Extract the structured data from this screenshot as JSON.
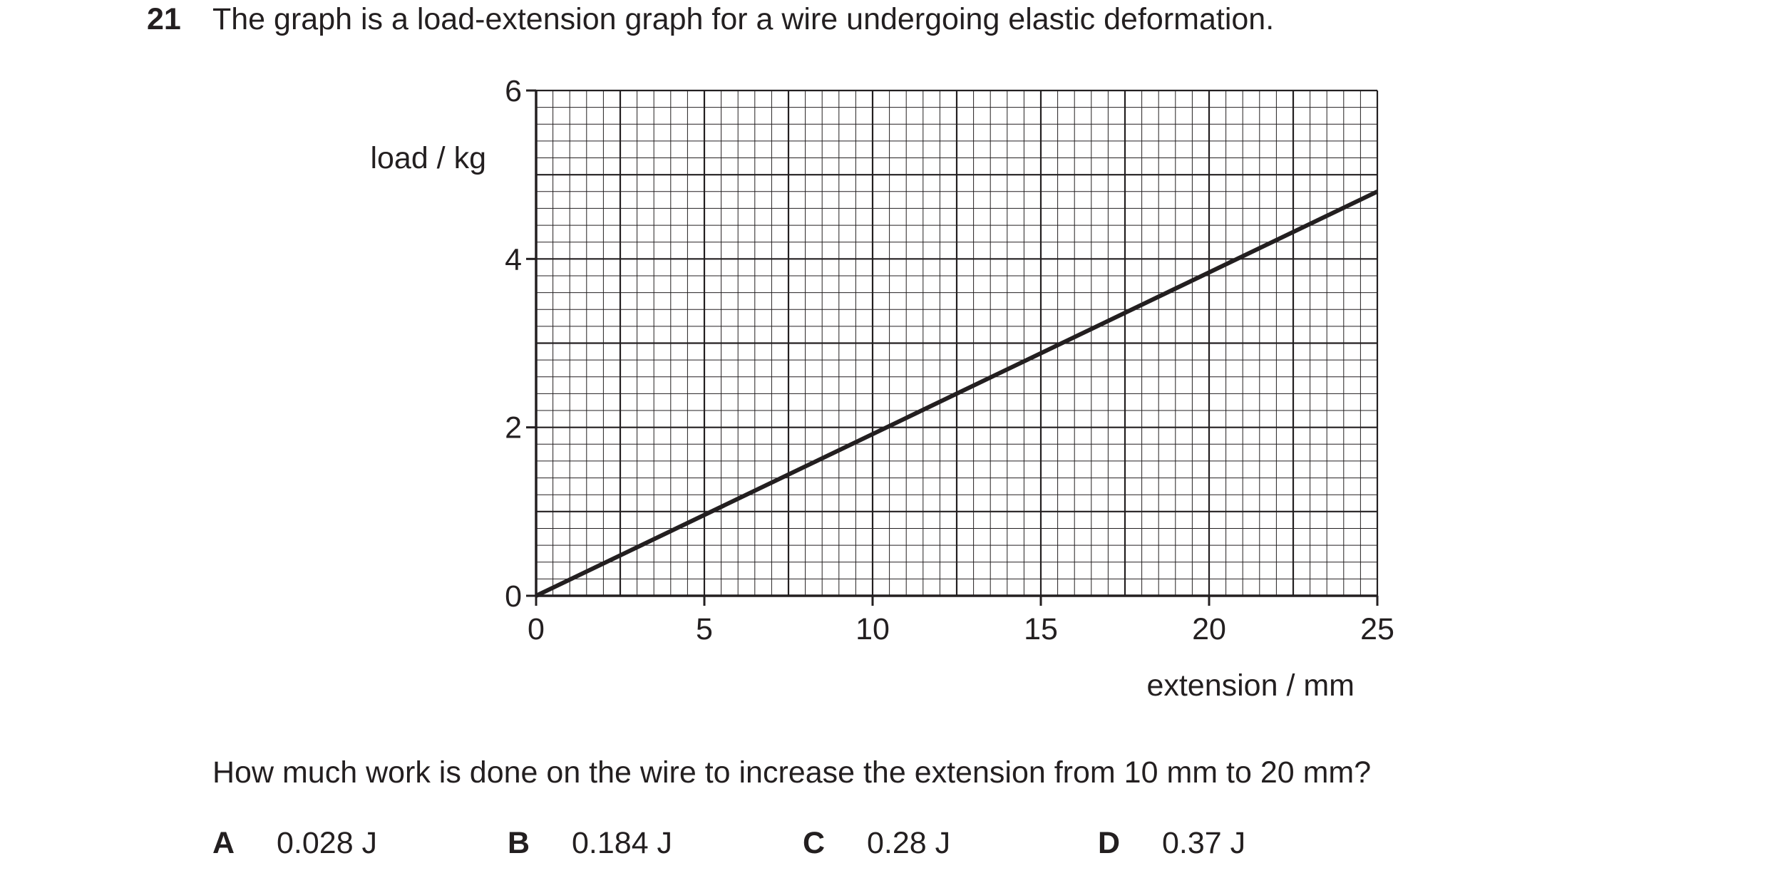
{
  "question": {
    "number": "21",
    "stem": "The graph is a load-extension graph for a wire undergoing elastic deformation.",
    "prompt": "How much work is done on the wire to increase the extension from 10 mm to 20 mm?"
  },
  "options": [
    {
      "letter": "A",
      "text": "0.028 J"
    },
    {
      "letter": "B",
      "text": "0.184 J"
    },
    {
      "letter": "C",
      "text": "0.28 J"
    },
    {
      "letter": "D",
      "text": "0.37 J"
    }
  ],
  "chart_data": {
    "type": "line",
    "title": "",
    "xlabel": "extension / mm",
    "ylabel": "load / kg",
    "xlim": [
      0,
      25
    ],
    "ylim": [
      0,
      6
    ],
    "x_ticks": [
      "0",
      "5",
      "10",
      "15",
      "20",
      "25"
    ],
    "y_ticks": [
      "0",
      "2",
      "4",
      "6"
    ],
    "grid": true,
    "series": [
      {
        "x": [
          0,
          25
        ],
        "y": [
          0,
          4.8
        ]
      }
    ]
  }
}
